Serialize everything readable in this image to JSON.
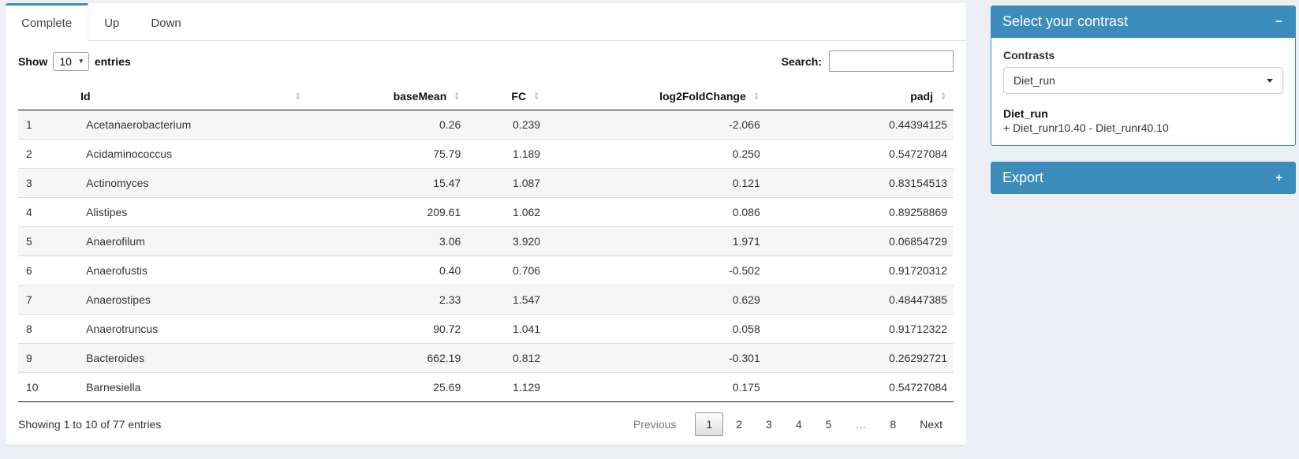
{
  "tabs": [
    {
      "label": "Complete",
      "active": true
    },
    {
      "label": "Up",
      "active": false
    },
    {
      "label": "Down",
      "active": false
    }
  ],
  "table_controls": {
    "show_label": "Show",
    "page_length": "10",
    "entries_label": "entries",
    "search_label": "Search:",
    "search_value": ""
  },
  "table": {
    "columns": [
      "",
      "Id",
      "baseMean",
      "FC",
      "log2FoldChange",
      "padj"
    ],
    "rows": [
      {
        "n": "1",
        "id": "Acetanaerobacterium",
        "baseMean": "0.26",
        "fc": "0.239",
        "log2fc": "-2.066",
        "padj": "0.44394125"
      },
      {
        "n": "2",
        "id": "Acidaminococcus",
        "baseMean": "75.79",
        "fc": "1.189",
        "log2fc": "0.250",
        "padj": "0.54727084"
      },
      {
        "n": "3",
        "id": "Actinomyces",
        "baseMean": "15.47",
        "fc": "1.087",
        "log2fc": "0.121",
        "padj": "0.83154513"
      },
      {
        "n": "4",
        "id": "Alistipes",
        "baseMean": "209.61",
        "fc": "1.062",
        "log2fc": "0.086",
        "padj": "0.89258869"
      },
      {
        "n": "5",
        "id": "Anaerofilum",
        "baseMean": "3.06",
        "fc": "3.920",
        "log2fc": "1.971",
        "padj": "0.06854729"
      },
      {
        "n": "6",
        "id": "Anaerofustis",
        "baseMean": "0.40",
        "fc": "0.706",
        "log2fc": "-0.502",
        "padj": "0.91720312"
      },
      {
        "n": "7",
        "id": "Anaerostipes",
        "baseMean": "2.33",
        "fc": "1.547",
        "log2fc": "0.629",
        "padj": "0.48447385"
      },
      {
        "n": "8",
        "id": "Anaerotruncus",
        "baseMean": "90.72",
        "fc": "1.041",
        "log2fc": "0.058",
        "padj": "0.91712322"
      },
      {
        "n": "9",
        "id": "Bacteroides",
        "baseMean": "662.19",
        "fc": "0.812",
        "log2fc": "-0.301",
        "padj": "0.26292721"
      },
      {
        "n": "10",
        "id": "Barnesiella",
        "baseMean": "25.69",
        "fc": "1.129",
        "log2fc": "0.175",
        "padj": "0.54727084"
      }
    ],
    "info": "Showing 1 to 10 of 77 entries",
    "pagination": {
      "previous": "Previous",
      "pages": [
        "1",
        "2",
        "3",
        "4",
        "5",
        "…",
        "8"
      ],
      "current": "1",
      "next": "Next"
    }
  },
  "contrast_box": {
    "title": "Select your contrast",
    "collapse_icon": "−",
    "contrasts_label": "Contrasts",
    "selected_contrast": "Diet_run",
    "contrast_name": "Diet_run",
    "contrast_formula": "+ Diet_runr10.40 - Diet_runr40.10"
  },
  "export_box": {
    "title": "Export",
    "expand_icon": "+"
  },
  "colors": {
    "primary": "#3c8dbc",
    "page_background": "#ecf0f5",
    "stripe_row": "#f6f6f6"
  }
}
